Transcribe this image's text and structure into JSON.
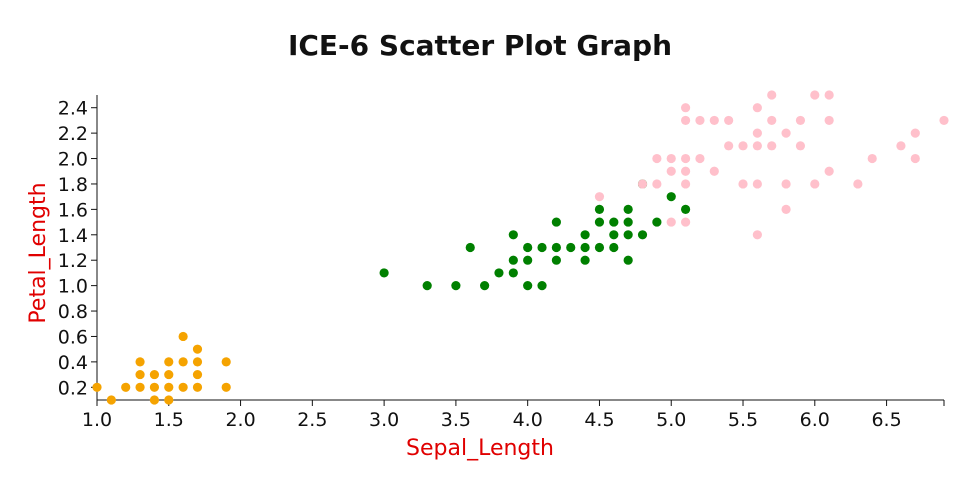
{
  "chart_data": {
    "type": "scatter",
    "title": "ICE-6 Scatter Plot Graph",
    "xlabel": "Sepal_Length",
    "ylabel": "Petal_Length",
    "xlim": [
      1.0,
      6.9
    ],
    "ylim": [
      0.1,
      2.5
    ],
    "x_ticks": [
      "1.0",
      "1.5",
      "2.0",
      "2.5",
      "3.0",
      "3.5",
      "4.0",
      "4.5",
      "5.0",
      "5.5",
      "6.0",
      "6.5"
    ],
    "y_ticks": [
      "0.2",
      "0.4",
      "0.6",
      "0.8",
      "1.0",
      "1.2",
      "1.4",
      "1.6",
      "1.8",
      "2.0",
      "2.2",
      "2.4"
    ],
    "grid": false,
    "label_color": "#e00000",
    "series": [
      {
        "color": "#f5a300",
        "points": [
          [
            1.0,
            0.2
          ],
          [
            1.1,
            0.1
          ],
          [
            1.2,
            0.2
          ],
          [
            1.3,
            0.2
          ],
          [
            1.3,
            0.3
          ],
          [
            1.3,
            0.4
          ],
          [
            1.4,
            0.1
          ],
          [
            1.4,
            0.2
          ],
          [
            1.4,
            0.3
          ],
          [
            1.5,
            0.1
          ],
          [
            1.5,
            0.2
          ],
          [
            1.5,
            0.3
          ],
          [
            1.5,
            0.4
          ],
          [
            1.6,
            0.2
          ],
          [
            1.6,
            0.4
          ],
          [
            1.6,
            0.6
          ],
          [
            1.7,
            0.2
          ],
          [
            1.7,
            0.3
          ],
          [
            1.7,
            0.4
          ],
          [
            1.7,
            0.5
          ],
          [
            1.9,
            0.2
          ],
          [
            1.9,
            0.4
          ]
        ]
      },
      {
        "color": "#008000",
        "points": [
          [
            3.0,
            1.1
          ],
          [
            3.3,
            1.0
          ],
          [
            3.5,
            1.0
          ],
          [
            3.6,
            1.3
          ],
          [
            3.7,
            1.0
          ],
          [
            3.8,
            1.1
          ],
          [
            3.9,
            1.1
          ],
          [
            3.9,
            1.2
          ],
          [
            3.9,
            1.4
          ],
          [
            4.0,
            1.0
          ],
          [
            4.0,
            1.2
          ],
          [
            4.0,
            1.3
          ],
          [
            4.1,
            1.0
          ],
          [
            4.1,
            1.3
          ],
          [
            4.2,
            1.2
          ],
          [
            4.2,
            1.3
          ],
          [
            4.2,
            1.5
          ],
          [
            4.3,
            1.3
          ],
          [
            4.4,
            1.2
          ],
          [
            4.4,
            1.3
          ],
          [
            4.4,
            1.4
          ],
          [
            4.5,
            1.3
          ],
          [
            4.5,
            1.5
          ],
          [
            4.5,
            1.6
          ],
          [
            4.6,
            1.3
          ],
          [
            4.6,
            1.4
          ],
          [
            4.6,
            1.5
          ],
          [
            4.7,
            1.2
          ],
          [
            4.7,
            1.4
          ],
          [
            4.7,
            1.5
          ],
          [
            4.7,
            1.6
          ],
          [
            4.8,
            1.4
          ],
          [
            4.8,
            1.8
          ],
          [
            4.9,
            1.5
          ],
          [
            5.0,
            1.7
          ],
          [
            5.1,
            1.6
          ]
        ]
      },
      {
        "color": "#ffc0cb",
        "points": [
          [
            4.5,
            1.7
          ],
          [
            4.8,
            1.8
          ],
          [
            4.9,
            1.8
          ],
          [
            4.9,
            2.0
          ],
          [
            5.0,
            1.5
          ],
          [
            5.0,
            1.9
          ],
          [
            5.0,
            2.0
          ],
          [
            5.1,
            1.5
          ],
          [
            5.1,
            1.8
          ],
          [
            5.1,
            1.9
          ],
          [
            5.1,
            2.0
          ],
          [
            5.1,
            2.3
          ],
          [
            5.1,
            2.4
          ],
          [
            5.2,
            2.0
          ],
          [
            5.2,
            2.3
          ],
          [
            5.3,
            1.9
          ],
          [
            5.3,
            2.3
          ],
          [
            5.4,
            2.1
          ],
          [
            5.4,
            2.3
          ],
          [
            5.5,
            1.8
          ],
          [
            5.5,
            2.1
          ],
          [
            5.6,
            1.4
          ],
          [
            5.6,
            1.8
          ],
          [
            5.6,
            2.1
          ],
          [
            5.6,
            2.2
          ],
          [
            5.6,
            2.4
          ],
          [
            5.7,
            2.1
          ],
          [
            5.7,
            2.3
          ],
          [
            5.7,
            2.5
          ],
          [
            5.8,
            1.6
          ],
          [
            5.8,
            1.8
          ],
          [
            5.8,
            2.2
          ],
          [
            5.9,
            2.1
          ],
          [
            5.9,
            2.3
          ],
          [
            6.0,
            1.8
          ],
          [
            6.0,
            2.5
          ],
          [
            6.1,
            1.9
          ],
          [
            6.1,
            2.3
          ],
          [
            6.1,
            2.5
          ],
          [
            6.3,
            1.8
          ],
          [
            6.4,
            2.0
          ],
          [
            6.6,
            2.1
          ],
          [
            6.7,
            2.0
          ],
          [
            6.7,
            2.2
          ],
          [
            6.9,
            2.3
          ]
        ]
      }
    ]
  }
}
